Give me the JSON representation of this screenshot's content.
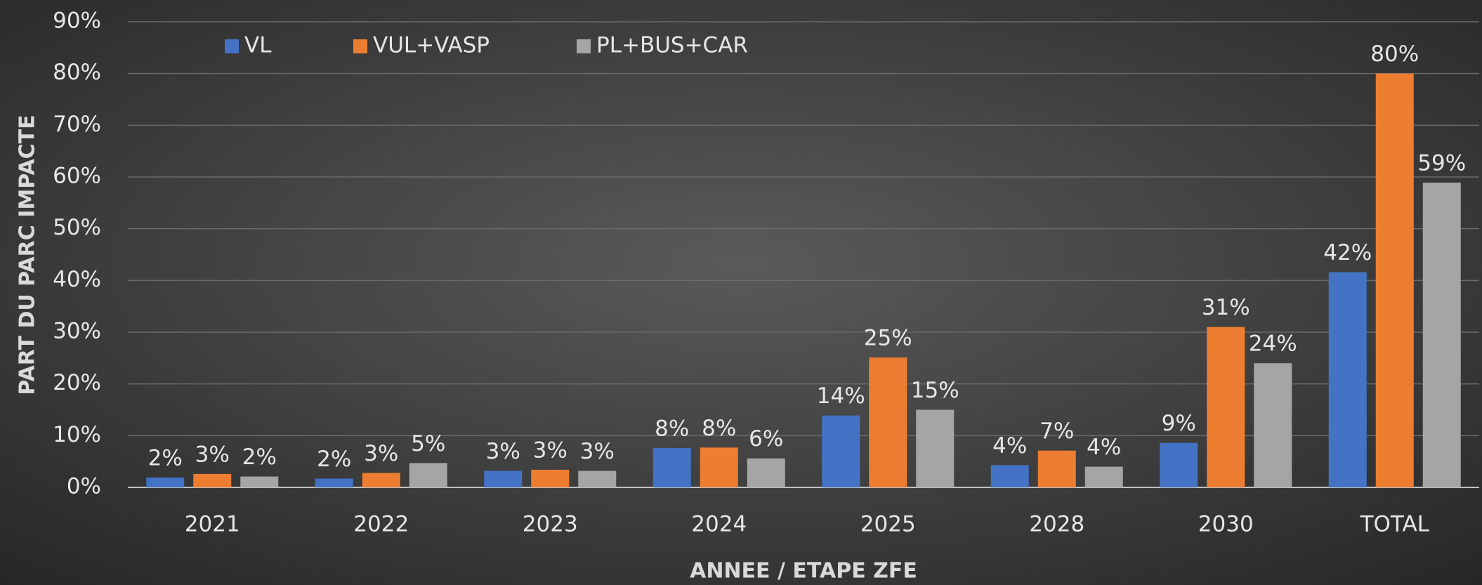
{
  "chart_data": {
    "type": "bar",
    "x_label": "ANNEE / ETAPE ZFE",
    "y_label": "PART DU PARC IMPACTE",
    "categories": [
      "2021",
      "2022",
      "2023",
      "2024",
      "2025",
      "2028",
      "2030",
      "TOTAL"
    ],
    "series": [
      {
        "name": "VL",
        "color": "#4472c4",
        "values": [
          1.9,
          1.7,
          3.2,
          7.6,
          13.9,
          4.3,
          8.6,
          41.6
        ],
        "value_labels": [
          "2%",
          "2%",
          "3%",
          "8%",
          "14%",
          "4%",
          "9%",
          "42%"
        ]
      },
      {
        "name": "VUL+VASP",
        "color": "#ed7d31",
        "values": [
          2.6,
          2.8,
          3.4,
          7.7,
          25.1,
          7.1,
          31.0,
          80.0
        ],
        "value_labels": [
          "3%",
          "3%",
          "3%",
          "8%",
          "25%",
          "7%",
          "31%",
          "80%"
        ]
      },
      {
        "name": "PL+BUS+CAR",
        "color": "#a5a5a5",
        "values": [
          2.1,
          4.7,
          3.2,
          5.6,
          15.0,
          4.0,
          24.0,
          58.9
        ],
        "value_labels": [
          "2%",
          "5%",
          "3%",
          "6%",
          "15%",
          "4%",
          "24%",
          "59%"
        ]
      }
    ],
    "ylim": [
      0,
      90
    ],
    "yticks": [
      {
        "value": 0,
        "label": "0%"
      },
      {
        "value": 10,
        "label": "10%"
      },
      {
        "value": 20,
        "label": "20%"
      },
      {
        "value": 30,
        "label": "30%"
      },
      {
        "value": 40,
        "label": "40%"
      },
      {
        "value": 50,
        "label": "50%"
      },
      {
        "value": 60,
        "label": "60%"
      },
      {
        "value": 70,
        "label": "70%"
      },
      {
        "value": 80,
        "label": "80%"
      },
      {
        "value": 90,
        "label": "90%"
      }
    ],
    "grid": true,
    "legend": "top"
  }
}
